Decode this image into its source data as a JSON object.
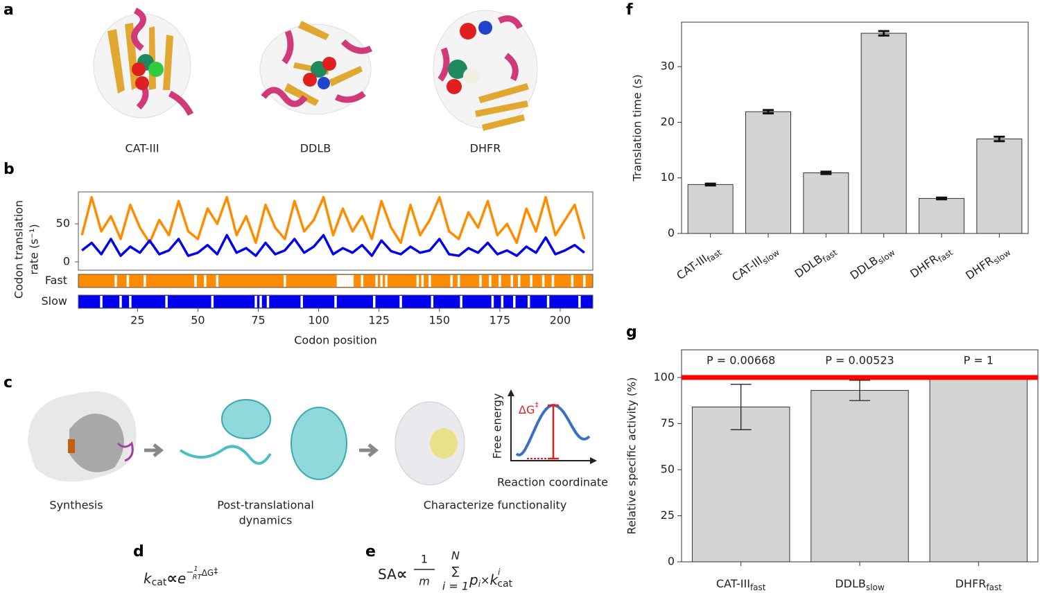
{
  "panel_labels": {
    "a": "a",
    "b": "b",
    "c": "c",
    "d": "d",
    "e": "e",
    "f": "f",
    "g": "g"
  },
  "panel_a": {
    "labels": [
      "CAT-III",
      "DDLB",
      "DHFR"
    ]
  },
  "panel_c": {
    "steps": [
      "Synthesis",
      "Post-translational",
      "dynamics",
      "Characterize functionality"
    ],
    "inset": {
      "ylabel": "Free energy",
      "xlabel": "Reaction coordinate",
      "barrier": "ΔG",
      "barrier_mark": "‡"
    }
  },
  "formula_d": {
    "k": "k",
    "k_sub": "cat",
    "prop": "∝",
    "e": "e",
    "sign": "−",
    "num": "1",
    "den": "RT",
    "dg": "ΔG",
    "dag": "‡"
  },
  "formula_e": {
    "lhs": "SA",
    "prop": "∝",
    "num": "1",
    "den": "m",
    "sum": "∑",
    "upper": "N",
    "lower": "i = 1",
    "p": "p",
    "p_sub": "i",
    "times": "×",
    "k": "k",
    "k_sup": "i",
    "k_sub": "cat"
  },
  "chart_data": [
    {
      "type": "line",
      "xlabel": "Codon position",
      "ylabel": [
        "Codon translation",
        "rate (s⁻¹)"
      ],
      "x": [
        2,
        6,
        10,
        14,
        18,
        22,
        26,
        30,
        34,
        38,
        42,
        46,
        50,
        54,
        58,
        62,
        66,
        70,
        74,
        78,
        82,
        86,
        90,
        94,
        98,
        102,
        106,
        110,
        114,
        118,
        122,
        126,
        130,
        134,
        138,
        142,
        146,
        150,
        154,
        158,
        162,
        166,
        170,
        174,
        178,
        182,
        186,
        190,
        194,
        198,
        202,
        206,
        210
      ],
      "series": [
        {
          "name": "Fast",
          "color": "#ff8c00",
          "values": [
            35,
            85,
            40,
            60,
            30,
            75,
            45,
            25,
            55,
            35,
            80,
            40,
            30,
            70,
            50,
            85,
            35,
            60,
            25,
            75,
            45,
            30,
            80,
            40,
            55,
            85,
            35,
            70,
            40,
            60,
            30,
            80,
            45,
            25,
            75,
            35,
            55,
            85,
            40,
            30,
            65,
            45,
            80,
            35,
            50,
            25,
            70,
            40,
            85,
            35,
            55,
            75,
            30
          ],
          "gaps": [
            16,
            21,
            28,
            49,
            53,
            58,
            86,
            108,
            109,
            110,
            111,
            112,
            113,
            114,
            118,
            124,
            126,
            128,
            141,
            143,
            146,
            155,
            158,
            167,
            171,
            175,
            180,
            183,
            188,
            193,
            197,
            205,
            210
          ]
        },
        {
          "name": "Slow",
          "color": "#0000ee",
          "values": [
            15,
            25,
            10,
            30,
            8,
            20,
            12,
            28,
            10,
            15,
            30,
            8,
            12,
            22,
            10,
            35,
            12,
            18,
            8,
            25,
            10,
            15,
            30,
            12,
            20,
            35,
            10,
            18,
            12,
            22,
            8,
            28,
            14,
            10,
            20,
            12,
            15,
            30,
            10,
            8,
            18,
            12,
            25,
            10,
            15,
            8,
            20,
            12,
            32,
            10,
            15,
            22,
            12
          ],
          "gaps": [
            10,
            18,
            22,
            37,
            56,
            74,
            76,
            79,
            93,
            107,
            123,
            134,
            147,
            159,
            172,
            176,
            181,
            187,
            195,
            208
          ]
        }
      ],
      "xlim": [
        0.5,
        213.5
      ],
      "ylim": [
        -11,
        92
      ],
      "xticks": [
        25,
        50,
        75,
        100,
        125,
        150,
        175,
        200
      ],
      "yticks": [
        0,
        50
      ]
    },
    {
      "type": "bar",
      "ylabel": "Translation time (s)",
      "categories": [
        "CAT-III",
        "CAT-III",
        "DDLB",
        "DDLB",
        "DHFR",
        "DHFR"
      ],
      "category_subscripts": [
        "fast",
        "slow",
        "fast",
        "slow",
        "fast",
        "slow"
      ],
      "values": [
        8.8,
        21.9,
        10.9,
        36.0,
        6.3,
        17.0
      ],
      "errors": [
        0.15,
        0.3,
        0.2,
        0.4,
        0.15,
        0.4
      ],
      "color": "#d3d3d3",
      "ylim": [
        0,
        38
      ],
      "yticks": [
        0,
        10,
        20,
        30
      ]
    },
    {
      "type": "bar",
      "ylabel": "Relative specific activity (%)",
      "categories": [
        "CAT-III",
        "DDLB",
        "DHFR"
      ],
      "category_subscripts": [
        "fast",
        "slow",
        "fast"
      ],
      "values": [
        84,
        93,
        100
      ],
      "errors": [
        12.3,
        5.5,
        0
      ],
      "annotations": [
        "P = 0.00668",
        "P = 0.00523",
        "P = 1"
      ],
      "reference_line": 100,
      "reference_color": "#ff0000",
      "color": "#d3d3d3",
      "ylim": [
        0,
        115
      ],
      "yticks": [
        0,
        25,
        50,
        75,
        100
      ]
    }
  ]
}
